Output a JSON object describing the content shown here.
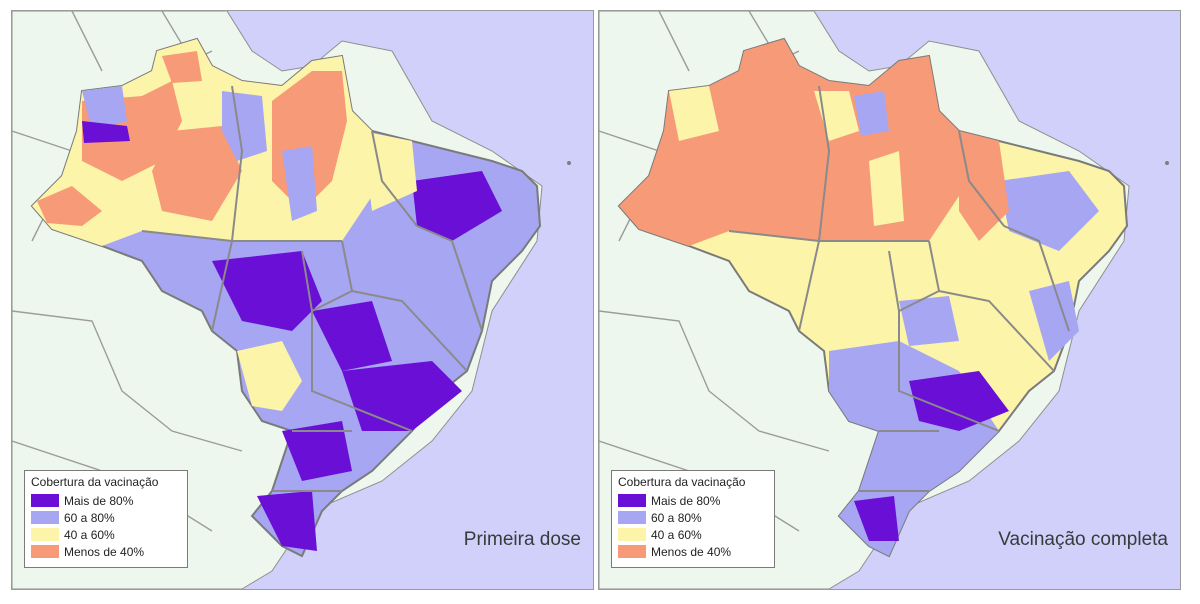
{
  "legend": {
    "title": "Cobertura da vacinação",
    "items": [
      {
        "label": "Mais de 80%",
        "color": "#6a0fd6"
      },
      {
        "label": "60 a 80%",
        "color": "#a6a6f2"
      },
      {
        "label": "40 a 60%",
        "color": "#fcf4a8"
      },
      {
        "label": "Menos de 40%",
        "color": "#f79a78"
      }
    ]
  },
  "colors": {
    "ocean": "#d0d0fb",
    "land": "#edf7ee",
    "border": "#7f7f7f",
    "state_border": "#8a8a8a"
  },
  "panels": [
    {
      "title": "Primeira dose"
    },
    {
      "title": "Vacinação completa"
    }
  ]
}
